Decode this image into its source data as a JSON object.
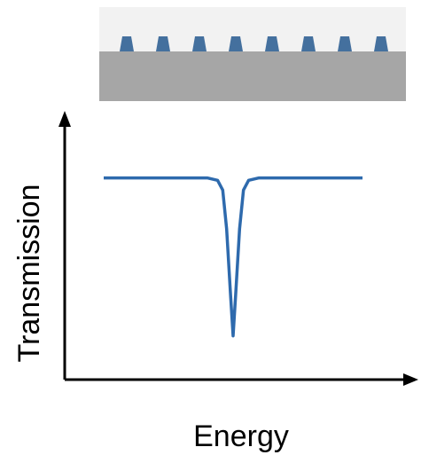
{
  "chart_data": {
    "type": "line",
    "xlabel": "Energy",
    "ylabel": "Transmission",
    "series": [
      {
        "x": [
          0.0,
          0.4,
          0.44,
          0.46,
          0.475,
          0.49,
          0.5,
          0.51,
          0.525,
          0.54,
          0.56,
          0.6,
          1.0
        ],
        "y": [
          0.83,
          0.83,
          0.82,
          0.78,
          0.62,
          0.35,
          0.18,
          0.35,
          0.62,
          0.78,
          0.82,
          0.83,
          0.83
        ]
      }
    ],
    "xlim": [
      0,
      1
    ],
    "ylim": [
      0,
      1
    ],
    "grid": false,
    "line_color": "#2e6aad"
  },
  "inset": {
    "substrate_color": "#a6a6a6",
    "background_color": "#f2f2f2",
    "feature_color": "#44709e",
    "feature_count": 8
  },
  "colors": {
    "axis": "#000000"
  }
}
